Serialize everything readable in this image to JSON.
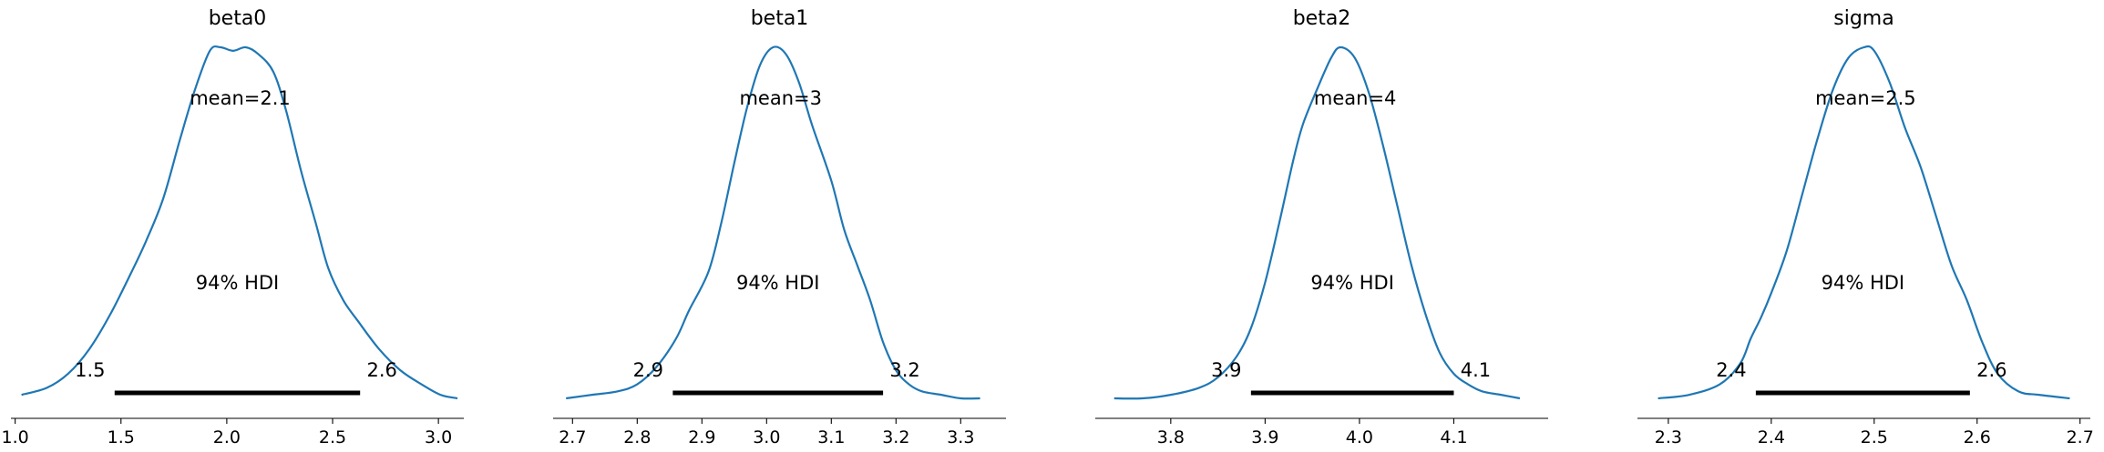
{
  "colors": {
    "kde": "#1f77b4",
    "hdi": "#000000"
  },
  "chart_data": [
    {
      "type": "line",
      "title": "beta0",
      "xlim": [
        0.98,
        3.12
      ],
      "xticks": [
        1.0,
        1.5,
        2.0,
        2.5,
        3.0
      ],
      "tick_labels": [
        "1.0",
        "1.5",
        "2.0",
        "2.5",
        "3.0"
      ],
      "mean_label": "mean=2.1",
      "hdi_text": "94% HDI",
      "hdi": [
        1.47,
        2.63
      ],
      "hdi_labels": [
        "1.5",
        "2.6"
      ],
      "density": {
        "x": [
          1.03,
          1.15,
          1.25,
          1.35,
          1.45,
          1.55,
          1.62,
          1.7,
          1.78,
          1.85,
          1.92,
          1.97,
          2.03,
          2.09,
          2.15,
          2.22,
          2.28,
          2.35,
          2.42,
          2.48,
          2.55,
          2.62,
          2.72,
          2.82,
          2.92,
          3.01,
          3.09
        ],
        "y": [
          0.01,
          0.03,
          0.07,
          0.14,
          0.24,
          0.36,
          0.45,
          0.57,
          0.74,
          0.88,
          0.99,
          1.0,
          0.99,
          1.0,
          0.98,
          0.93,
          0.82,
          0.65,
          0.5,
          0.37,
          0.28,
          0.22,
          0.14,
          0.08,
          0.04,
          0.01,
          0.0
        ]
      }
    },
    {
      "type": "line",
      "title": "beta1",
      "xlim": [
        2.67,
        3.37
      ],
      "xticks": [
        2.7,
        2.8,
        2.9,
        3.0,
        3.1,
        3.2,
        3.3
      ],
      "tick_labels": [
        "2.7",
        "2.8",
        "2.9",
        "3.0",
        "3.1",
        "3.2",
        "3.3"
      ],
      "mean_label": "mean=3",
      "hdi_text": "94% HDI",
      "hdi": [
        2.855,
        3.18
      ],
      "hdi_labels": [
        "2.9",
        "3.2"
      ],
      "density": {
        "x": [
          2.69,
          2.73,
          2.77,
          2.8,
          2.83,
          2.86,
          2.88,
          2.91,
          2.93,
          2.95,
          2.97,
          2.99,
          3.01,
          3.03,
          3.05,
          3.07,
          3.1,
          3.12,
          3.14,
          3.16,
          3.18,
          3.2,
          3.22,
          3.24,
          3.27,
          3.3,
          3.33
        ],
        "y": [
          0.0,
          0.01,
          0.02,
          0.04,
          0.09,
          0.17,
          0.25,
          0.36,
          0.5,
          0.67,
          0.83,
          0.95,
          1.0,
          0.98,
          0.9,
          0.78,
          0.62,
          0.48,
          0.38,
          0.28,
          0.16,
          0.08,
          0.04,
          0.02,
          0.01,
          0.0,
          0.0
        ]
      }
    },
    {
      "type": "line",
      "title": "beta2",
      "xlim": [
        3.72,
        4.2
      ],
      "xticks": [
        3.8,
        3.9,
        4.0,
        4.1
      ],
      "tick_labels": [
        "3.8",
        "3.9",
        "4.0",
        "4.1"
      ],
      "mean_label": "mean=4",
      "hdi_text": "94% HDI",
      "hdi": [
        3.885,
        4.1
      ],
      "hdi_labels": [
        "3.9",
        "4.1"
      ],
      "density": {
        "x": [
          3.74,
          3.77,
          3.8,
          3.83,
          3.85,
          3.87,
          3.885,
          3.9,
          3.915,
          3.93,
          3.94,
          3.955,
          3.97,
          3.98,
          3.995,
          4.01,
          4.025,
          4.04,
          4.055,
          4.07,
          4.085,
          4.1,
          4.115,
          4.13,
          4.15,
          4.17
        ],
        "y": [
          0.0,
          0.0,
          0.01,
          0.03,
          0.06,
          0.12,
          0.2,
          0.33,
          0.5,
          0.68,
          0.78,
          0.88,
          0.97,
          1.0,
          0.97,
          0.87,
          0.72,
          0.55,
          0.38,
          0.24,
          0.13,
          0.07,
          0.04,
          0.02,
          0.01,
          0.0
        ]
      }
    },
    {
      "type": "line",
      "title": "sigma",
      "xlim": [
        2.27,
        2.71
      ],
      "xticks": [
        2.3,
        2.4,
        2.5,
        2.6,
        2.7
      ],
      "tick_labels": [
        "2.3",
        "2.4",
        "2.5",
        "2.6",
        "2.7"
      ],
      "mean_label": "mean=2.5",
      "hdi_text": "94% HDI",
      "hdi": [
        2.385,
        2.593
      ],
      "hdi_labels": [
        "2.4",
        "2.6"
      ],
      "density": {
        "x": [
          2.29,
          2.32,
          2.35,
          2.37,
          2.38,
          2.39,
          2.4,
          2.415,
          2.43,
          2.445,
          2.46,
          2.475,
          2.49,
          2.5,
          2.515,
          2.53,
          2.545,
          2.56,
          2.575,
          2.59,
          2.605,
          2.62,
          2.64,
          2.66,
          2.69
        ],
        "y": [
          0.0,
          0.01,
          0.04,
          0.1,
          0.17,
          0.23,
          0.3,
          0.42,
          0.58,
          0.74,
          0.88,
          0.97,
          1.0,
          0.99,
          0.9,
          0.77,
          0.66,
          0.52,
          0.38,
          0.28,
          0.16,
          0.07,
          0.02,
          0.01,
          0.0
        ]
      }
    }
  ]
}
